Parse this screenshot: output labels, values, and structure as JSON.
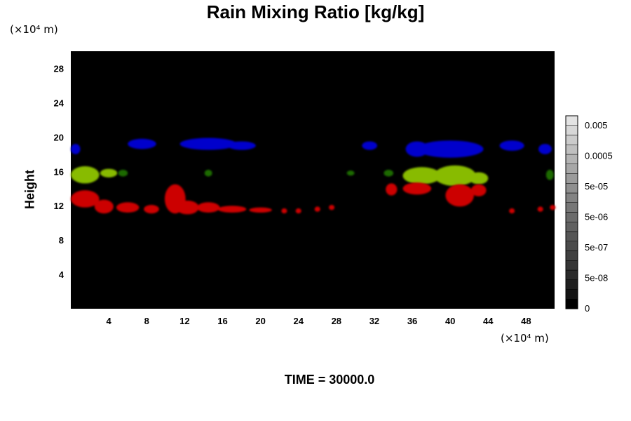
{
  "title": "Rain Mixing Ratio [kg/kg]",
  "footer": "TIME = 30000.0",
  "chart_data": {
    "type": "heatmap",
    "title": "Rain Mixing Ratio [kg/kg]",
    "xlabel": "",
    "ylabel": "Height",
    "x_unit": "(×10⁴ m)",
    "y_unit": "(×10⁴ m)",
    "xlim": [
      0,
      51
    ],
    "ylim": [
      0,
      30
    ],
    "x_ticks": [
      4,
      8,
      12,
      16,
      20,
      24,
      28,
      32,
      36,
      40,
      44,
      48
    ],
    "y_ticks": [
      4,
      8,
      12,
      16,
      20,
      24,
      28
    ],
    "background_color": "#000000",
    "colorbar": {
      "tick_labels": [
        "0.005",
        "0.0005",
        "5e-05",
        "5e-06",
        "5e-07",
        "5e-08",
        "0"
      ],
      "colors": [
        "#000000",
        "#141414",
        "#1f1f1f",
        "#2a2a2a",
        "#353535",
        "#404040",
        "#4b4b4b",
        "#565656",
        "#616161",
        "#6c6c6c",
        "#777777",
        "#838383",
        "#8f8f8f",
        "#9b9b9b",
        "#a7a7a7",
        "#b3b3b3",
        "#bfbfbf",
        "#cbcbcb",
        "#d7d7d7",
        "#e3e3e3"
      ]
    },
    "regions": [
      {
        "color": "#0000cc",
        "name": "",
        "points": [
          {
            "x": 7.5,
            "y": 19.2,
            "rx": 1.5,
            "ry": 0.6
          },
          {
            "x": 14.5,
            "y": 19.2,
            "rx": 3.0,
            "ry": 0.7
          },
          {
            "x": 18.0,
            "y": 19.0,
            "rx": 1.5,
            "ry": 0.5
          },
          {
            "x": 31.5,
            "y": 19.0,
            "rx": 0.8,
            "ry": 0.5
          },
          {
            "x": 36.5,
            "y": 18.6,
            "rx": 1.2,
            "ry": 0.9
          },
          {
            "x": 40.0,
            "y": 18.6,
            "rx": 3.5,
            "ry": 1.0
          },
          {
            "x": 46.5,
            "y": 19.0,
            "rx": 1.3,
            "ry": 0.6
          },
          {
            "x": 50.0,
            "y": 18.6,
            "rx": 0.7,
            "ry": 0.6
          },
          {
            "x": 0.5,
            "y": 18.6,
            "rx": 0.5,
            "ry": 0.6
          }
        ]
      },
      {
        "color": "#88bb00",
        "name": "",
        "points": [
          {
            "x": 1.5,
            "y": 15.6,
            "rx": 1.5,
            "ry": 1.0
          },
          {
            "x": 4.0,
            "y": 15.8,
            "rx": 0.9,
            "ry": 0.5
          },
          {
            "x": 37.0,
            "y": 15.5,
            "rx": 2.0,
            "ry": 1.0
          },
          {
            "x": 40.5,
            "y": 15.5,
            "rx": 2.2,
            "ry": 1.2
          },
          {
            "x": 43.0,
            "y": 15.2,
            "rx": 1.0,
            "ry": 0.7
          }
        ]
      },
      {
        "color": "#1a6b00",
        "name": "",
        "points": [
          {
            "x": 5.5,
            "y": 15.8,
            "rx": 0.5,
            "ry": 0.4
          },
          {
            "x": 14.5,
            "y": 15.8,
            "rx": 0.4,
            "ry": 0.4
          },
          {
            "x": 29.5,
            "y": 15.8,
            "rx": 0.4,
            "ry": 0.3
          },
          {
            "x": 33.5,
            "y": 15.8,
            "rx": 0.5,
            "ry": 0.4
          },
          {
            "x": 50.5,
            "y": 15.6,
            "rx": 0.4,
            "ry": 0.6
          }
        ]
      },
      {
        "color": "#cc0000",
        "name": "",
        "points": [
          {
            "x": 1.5,
            "y": 12.8,
            "rx": 1.5,
            "ry": 1.0
          },
          {
            "x": 3.5,
            "y": 11.9,
            "rx": 1.0,
            "ry": 0.8
          },
          {
            "x": 6.0,
            "y": 11.8,
            "rx": 1.2,
            "ry": 0.6
          },
          {
            "x": 8.5,
            "y": 11.6,
            "rx": 0.8,
            "ry": 0.5
          },
          {
            "x": 11.0,
            "y": 12.8,
            "rx": 1.1,
            "ry": 1.7
          },
          {
            "x": 12.3,
            "y": 11.8,
            "rx": 1.2,
            "ry": 0.8
          },
          {
            "x": 14.5,
            "y": 11.8,
            "rx": 1.2,
            "ry": 0.6
          },
          {
            "x": 17.0,
            "y": 11.6,
            "rx": 1.5,
            "ry": 0.4
          },
          {
            "x": 20.0,
            "y": 11.5,
            "rx": 1.2,
            "ry": 0.3
          },
          {
            "x": 22.5,
            "y": 11.4,
            "rx": 0.3,
            "ry": 0.3
          },
          {
            "x": 24.0,
            "y": 11.4,
            "rx": 0.3,
            "ry": 0.3
          },
          {
            "x": 26.0,
            "y": 11.6,
            "rx": 0.3,
            "ry": 0.3
          },
          {
            "x": 27.5,
            "y": 11.8,
            "rx": 0.3,
            "ry": 0.3
          },
          {
            "x": 33.8,
            "y": 13.9,
            "rx": 0.6,
            "ry": 0.7
          },
          {
            "x": 36.5,
            "y": 14.0,
            "rx": 1.5,
            "ry": 0.7
          },
          {
            "x": 41.0,
            "y": 13.2,
            "rx": 1.5,
            "ry": 1.3
          },
          {
            "x": 43.0,
            "y": 13.8,
            "rx": 0.8,
            "ry": 0.7
          },
          {
            "x": 46.5,
            "y": 11.4,
            "rx": 0.3,
            "ry": 0.3
          },
          {
            "x": 49.5,
            "y": 11.6,
            "rx": 0.3,
            "ry": 0.3
          },
          {
            "x": 50.8,
            "y": 11.8,
            "rx": 0.3,
            "ry": 0.3
          }
        ]
      }
    ]
  }
}
